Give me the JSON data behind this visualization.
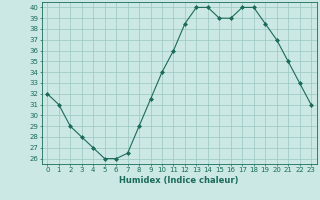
{
  "x": [
    0,
    1,
    2,
    3,
    4,
    5,
    6,
    7,
    8,
    9,
    10,
    11,
    12,
    13,
    14,
    15,
    16,
    17,
    18,
    19,
    20,
    21,
    22,
    23
  ],
  "y": [
    32,
    31,
    29,
    28,
    27,
    26,
    26,
    26.5,
    29,
    31.5,
    34,
    36,
    38.5,
    40,
    40,
    39,
    39,
    40,
    40,
    38.5,
    37,
    35,
    33,
    31
  ],
  "xlabel": "Humidex (Indice chaleur)",
  "ylim": [
    25.5,
    40.5
  ],
  "xlim": [
    -0.5,
    23.5
  ],
  "yticks": [
    26,
    27,
    28,
    29,
    30,
    31,
    32,
    33,
    34,
    35,
    36,
    37,
    38,
    39,
    40
  ],
  "xticks": [
    0,
    1,
    2,
    3,
    4,
    5,
    6,
    7,
    8,
    9,
    10,
    11,
    12,
    13,
    14,
    15,
    16,
    17,
    18,
    19,
    20,
    21,
    22,
    23
  ],
  "line_color": "#1a6b5a",
  "marker_color": "#1a6b5a",
  "bg_color": "#cce8e4",
  "grid_color": "#9ac8c2",
  "label_color": "#1a6b5a",
  "tick_color": "#1a6b5a",
  "font_size": 5,
  "xlabel_fontsize": 6
}
